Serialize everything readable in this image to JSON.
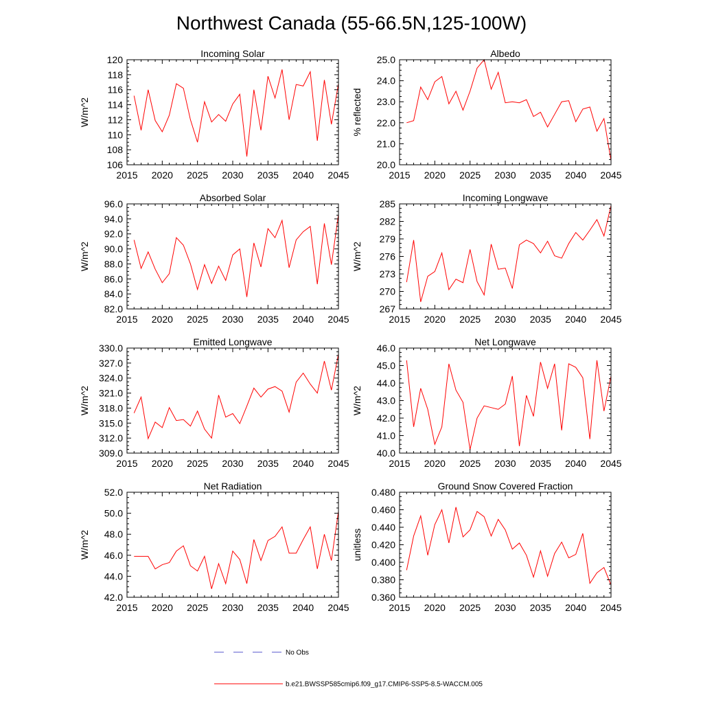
{
  "page_title": "Northwest Canada (55-66.5N,125-100W)",
  "colors": {
    "model_line": "#ff0000",
    "obs_line": "#5555cc",
    "axis": "#000000"
  },
  "legend": {
    "obs_label": "No Obs",
    "model_label": "b.e21.BWSSP585cmip6.f09_g17.CMIP6-SSP5-8.5-WACCM.005"
  },
  "chart_data": [
    {
      "type": "line",
      "title": "Incoming Solar",
      "ylabel": "W/m^2",
      "xlim": [
        2015,
        2045
      ],
      "ylim": [
        106,
        120
      ],
      "xticks": [
        2015,
        2020,
        2025,
        2030,
        2035,
        2040,
        2045
      ],
      "yticks": [
        "106",
        "108",
        "110",
        "112",
        "114",
        "116",
        "118",
        "120"
      ],
      "x": [
        2016,
        2017,
        2018,
        2019,
        2020,
        2021,
        2022,
        2023,
        2024,
        2025,
        2026,
        2027,
        2028,
        2029,
        2030,
        2031,
        2032,
        2033,
        2034,
        2035,
        2036,
        2037,
        2038,
        2039,
        2040,
        2041,
        2042,
        2043,
        2044,
        2045
      ],
      "series": [
        {
          "name": "b.e21.BWSSP585cmip6.f09_g17.CMIP6-SSP5-8.5-WACCM.005",
          "values": [
            115.2,
            110.6,
            116.0,
            111.9,
            110.4,
            112.6,
            116.8,
            116.2,
            112.0,
            109.0,
            114.4,
            111.7,
            112.7,
            111.8,
            114.1,
            115.4,
            107.1,
            116.0,
            110.6,
            117.8,
            114.9,
            118.7,
            112.0,
            116.7,
            116.5,
            118.4,
            109.2,
            117.3,
            111.4,
            116.8
          ]
        }
      ]
    },
    {
      "type": "line",
      "title": "Albedo",
      "ylabel": "% reflected",
      "xlim": [
        2015,
        2045
      ],
      "ylim": [
        20.0,
        25.0
      ],
      "xticks": [
        2015,
        2020,
        2025,
        2030,
        2035,
        2040,
        2045
      ],
      "yticks": [
        "20.0",
        "21.0",
        "22.0",
        "23.0",
        "24.0",
        "25.0"
      ],
      "x": [
        2016,
        2017,
        2018,
        2019,
        2020,
        2021,
        2022,
        2023,
        2024,
        2025,
        2026,
        2027,
        2028,
        2029,
        2030,
        2031,
        2032,
        2033,
        2034,
        2035,
        2036,
        2037,
        2038,
        2039,
        2040,
        2041,
        2042,
        2043,
        2044,
        2045
      ],
      "series": [
        {
          "name": "b.e21.BWSSP585cmip6.f09_g17.CMIP6-SSP5-8.5-WACCM.005",
          "values": [
            22.0,
            22.1,
            23.7,
            23.1,
            23.95,
            24.2,
            22.9,
            23.5,
            22.6,
            23.5,
            24.6,
            25.0,
            23.6,
            24.4,
            22.95,
            23.0,
            22.95,
            23.1,
            22.3,
            22.5,
            21.8,
            22.4,
            23.0,
            23.05,
            22.05,
            22.65,
            22.75,
            21.6,
            22.2,
            20.2
          ]
        }
      ]
    },
    {
      "type": "line",
      "title": "Absorbed Solar",
      "ylabel": "W/m^2",
      "xlim": [
        2015,
        2045
      ],
      "ylim": [
        82.0,
        96.0
      ],
      "xticks": [
        2015,
        2020,
        2025,
        2030,
        2035,
        2040,
        2045
      ],
      "yticks": [
        "82.0",
        "84.0",
        "86.0",
        "88.0",
        "90.0",
        "92.0",
        "94.0",
        "96.0"
      ],
      "x": [
        2016,
        2017,
        2018,
        2019,
        2020,
        2021,
        2022,
        2023,
        2024,
        2025,
        2026,
        2027,
        2028,
        2029,
        2030,
        2031,
        2032,
        2033,
        2034,
        2035,
        2036,
        2037,
        2038,
        2039,
        2040,
        2041,
        2042,
        2043,
        2044,
        2045
      ],
      "series": [
        {
          "name": "b.e21.BWSSP585cmip6.f09_g17.CMIP6-SSP5-8.5-WACCM.005",
          "values": [
            91.2,
            87.4,
            89.6,
            87.3,
            85.5,
            86.7,
            91.5,
            90.5,
            88.0,
            84.6,
            87.9,
            85.4,
            87.7,
            85.8,
            89.2,
            90.0,
            83.6,
            90.8,
            87.6,
            92.7,
            91.5,
            93.8,
            87.5,
            91.2,
            92.3,
            93.0,
            85.3,
            93.4,
            87.9,
            94.6
          ]
        }
      ]
    },
    {
      "type": "line",
      "title": "Incoming Longwave",
      "ylabel": "W/m^2",
      "xlim": [
        2015,
        2045
      ],
      "ylim": [
        267,
        285
      ],
      "xticks": [
        2015,
        2020,
        2025,
        2030,
        2035,
        2040,
        2045
      ],
      "yticks": [
        "267",
        "270",
        "273",
        "276",
        "279",
        "282",
        "285"
      ],
      "x": [
        2016,
        2017,
        2018,
        2019,
        2020,
        2021,
        2022,
        2023,
        2024,
        2025,
        2026,
        2027,
        2028,
        2029,
        2030,
        2031,
        2032,
        2033,
        2034,
        2035,
        2036,
        2037,
        2038,
        2039,
        2040,
        2041,
        2042,
        2043,
        2044,
        2045
      ],
      "series": [
        {
          "name": "b.e21.BWSSP585cmip6.f09_g17.CMIP6-SSP5-8.5-WACCM.005",
          "values": [
            271.6,
            278.8,
            268.2,
            272.6,
            273.4,
            276.6,
            270.3,
            272.1,
            271.5,
            277.2,
            271.7,
            269.4,
            278.1,
            273.8,
            274.0,
            270.5,
            278.0,
            278.8,
            278.2,
            276.6,
            278.6,
            276.1,
            275.7,
            278.2,
            280.1,
            278.8,
            280.5,
            282.3,
            279.5,
            284.7
          ]
        }
      ]
    },
    {
      "type": "line",
      "title": "Emitted Longwave",
      "ylabel": "W/m^2",
      "xlim": [
        2015,
        2045
      ],
      "ylim": [
        309.0,
        330.0
      ],
      "xticks": [
        2015,
        2020,
        2025,
        2030,
        2035,
        2040,
        2045
      ],
      "yticks": [
        "309.0",
        "312.0",
        "315.0",
        "318.0",
        "321.0",
        "324.0",
        "327.0",
        "330.0"
      ],
      "x": [
        2016,
        2017,
        2018,
        2019,
        2020,
        2021,
        2022,
        2023,
        2024,
        2025,
        2026,
        2027,
        2028,
        2029,
        2030,
        2031,
        2032,
        2033,
        2034,
        2035,
        2036,
        2037,
        2038,
        2039,
        2040,
        2041,
        2042,
        2043,
        2044,
        2045
      ],
      "series": [
        {
          "name": "b.e21.BWSSP585cmip6.f09_g17.CMIP6-SSP5-8.5-WACCM.005",
          "values": [
            317.0,
            320.2,
            311.9,
            315.2,
            314.1,
            318.1,
            315.5,
            315.7,
            314.4,
            317.4,
            313.8,
            312.0,
            320.6,
            316.2,
            316.9,
            314.9,
            318.4,
            322.0,
            320.2,
            321.8,
            322.3,
            321.4,
            317.2,
            323.2,
            325.0,
            322.8,
            321.0,
            327.4,
            321.6,
            328.8
          ]
        }
      ]
    },
    {
      "type": "line",
      "title": "Net Longwave",
      "ylabel": "W/m^2",
      "xlim": [
        2015,
        2045
      ],
      "ylim": [
        40.0,
        46.0
      ],
      "xticks": [
        2015,
        2020,
        2025,
        2030,
        2035,
        2040,
        2045
      ],
      "yticks": [
        "40.0",
        "41.0",
        "42.0",
        "43.0",
        "44.0",
        "45.0",
        "46.0"
      ],
      "x": [
        2016,
        2017,
        2018,
        2019,
        2020,
        2021,
        2022,
        2023,
        2024,
        2025,
        2026,
        2027,
        2028,
        2029,
        2030,
        2031,
        2032,
        2033,
        2034,
        2035,
        2036,
        2037,
        2038,
        2039,
        2040,
        2041,
        2042,
        2043,
        2044,
        2045
      ],
      "series": [
        {
          "name": "b.e21.BWSSP585cmip6.f09_g17.CMIP6-SSP5-8.5-WACCM.005",
          "values": [
            45.3,
            41.5,
            43.7,
            42.5,
            40.5,
            41.5,
            45.1,
            43.6,
            42.9,
            40.2,
            42.0,
            42.7,
            42.6,
            42.5,
            42.8,
            44.4,
            40.4,
            43.3,
            42.1,
            45.2,
            43.7,
            45.1,
            41.3,
            45.1,
            44.9,
            44.3,
            40.8,
            45.3,
            42.4,
            44.4
          ]
        }
      ]
    },
    {
      "type": "line",
      "title": "Net Radiation",
      "ylabel": "W/m^2",
      "xlim": [
        2015,
        2045
      ],
      "ylim": [
        42.0,
        52.0
      ],
      "xticks": [
        2015,
        2020,
        2025,
        2030,
        2035,
        2040,
        2045
      ],
      "yticks": [
        "42.0",
        "44.0",
        "46.0",
        "48.0",
        "50.0",
        "52.0"
      ],
      "x": [
        2016,
        2017,
        2018,
        2019,
        2020,
        2021,
        2022,
        2023,
        2024,
        2025,
        2026,
        2027,
        2028,
        2029,
        2030,
        2031,
        2032,
        2033,
        2034,
        2035,
        2036,
        2037,
        2038,
        2039,
        2040,
        2041,
        2042,
        2043,
        2044,
        2045
      ],
      "series": [
        {
          "name": "b.e21.BWSSP585cmip6.f09_g17.CMIP6-SSP5-8.5-WACCM.005",
          "values": [
            45.9,
            45.9,
            45.9,
            44.7,
            45.1,
            45.3,
            46.4,
            46.9,
            45.0,
            44.5,
            45.9,
            42.8,
            45.2,
            43.3,
            46.4,
            45.6,
            43.3,
            47.5,
            45.5,
            47.4,
            47.8,
            48.7,
            46.2,
            46.2,
            47.5,
            48.7,
            44.7,
            48.0,
            45.5,
            50.2
          ]
        }
      ]
    },
    {
      "type": "line",
      "title": "Ground Snow Covered Fraction",
      "ylabel": "unitless",
      "xlim": [
        2015,
        2045
      ],
      "ylim": [
        0.36,
        0.48
      ],
      "xticks": [
        2015,
        2020,
        2025,
        2030,
        2035,
        2040,
        2045
      ],
      "yticks": [
        "0.360",
        "0.380",
        "0.400",
        "0.420",
        "0.440",
        "0.460",
        "0.480"
      ],
      "x": [
        2016,
        2017,
        2018,
        2019,
        2020,
        2021,
        2022,
        2023,
        2024,
        2025,
        2026,
        2027,
        2028,
        2029,
        2030,
        2031,
        2032,
        2033,
        2034,
        2035,
        2036,
        2037,
        2038,
        2039,
        2040,
        2041,
        2042,
        2043,
        2044,
        2045
      ],
      "series": [
        {
          "name": "b.e21.BWSSP585cmip6.f09_g17.CMIP6-SSP5-8.5-WACCM.005",
          "values": [
            0.391,
            0.43,
            0.453,
            0.408,
            0.443,
            0.46,
            0.422,
            0.463,
            0.429,
            0.437,
            0.458,
            0.452,
            0.43,
            0.449,
            0.437,
            0.415,
            0.422,
            0.408,
            0.383,
            0.413,
            0.384,
            0.41,
            0.423,
            0.405,
            0.409,
            0.433,
            0.376,
            0.388,
            0.394,
            0.374
          ]
        }
      ]
    }
  ]
}
